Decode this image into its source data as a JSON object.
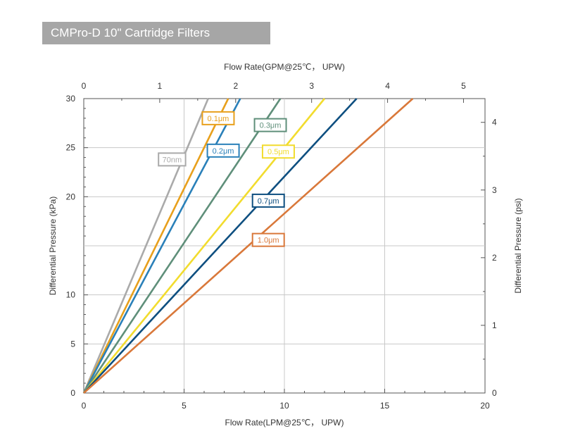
{
  "title": "CMPro-D 10\" Cartridge Filters",
  "chart_data": {
    "type": "line",
    "xlabel": "Flow Rate(LPM@25℃， UPW)",
    "x2label": "Flow Rate(GPM@25℃， UPW)",
    "ylabel": "Differential Pressure (kPa)",
    "y2label": "Differential Pressure (psi)",
    "xlim": [
      0,
      20
    ],
    "ylim": [
      0,
      30
    ],
    "x2lim": [
      0,
      5.283
    ],
    "y2lim": [
      0,
      4.351
    ],
    "x_ticks": [
      0,
      5,
      10,
      15,
      20
    ],
    "y_ticks": [
      0,
      5,
      10,
      20,
      25,
      30
    ],
    "y_grid": [
      5,
      10,
      15,
      20,
      25,
      30
    ],
    "x2_ticks": [
      0,
      1,
      2,
      3,
      4,
      5
    ],
    "y2_ticks": [
      0,
      1,
      2,
      3,
      4
    ],
    "grid": true,
    "series": [
      {
        "name": "70nm",
        "color": "#aaaaaa",
        "points": [
          [
            0,
            0
          ],
          [
            6.2,
            30
          ]
        ]
      },
      {
        "name": "0.1μm",
        "color": "#e8a01c",
        "points": [
          [
            0,
            0
          ],
          [
            7.2,
            30
          ]
        ]
      },
      {
        "name": "0.2μm",
        "color": "#2a80b9",
        "points": [
          [
            0,
            0
          ],
          [
            7.8,
            30
          ]
        ]
      },
      {
        "name": "0.3μm",
        "color": "#5f8f7a",
        "points": [
          [
            0,
            0
          ],
          [
            9.8,
            30
          ]
        ]
      },
      {
        "name": "0.5μm",
        "color": "#f2dc2e",
        "points": [
          [
            0,
            0
          ],
          [
            12.0,
            30
          ]
        ]
      },
      {
        "name": "0.7μm",
        "color": "#0e4f80",
        "points": [
          [
            0,
            0
          ],
          [
            13.6,
            30
          ]
        ]
      },
      {
        "name": "1.0μm",
        "color": "#d9783a",
        "points": [
          [
            0,
            0
          ],
          [
            16.4,
            30
          ]
        ]
      }
    ],
    "labels": [
      {
        "text": "70nm",
        "color": "#aaaaaa",
        "x": 4.4,
        "y": 23.8
      },
      {
        "text": "0.1μm",
        "color": "#e8a01c",
        "x": 6.7,
        "y": 28.0
      },
      {
        "text": "0.2μm",
        "color": "#2a80b9",
        "x": 6.95,
        "y": 24.7
      },
      {
        "text": "0.3μm",
        "color": "#5f8f7a",
        "x": 9.3,
        "y": 27.3
      },
      {
        "text": "0.5μm",
        "color": "#f2dc2e",
        "x": 9.7,
        "y": 24.6
      },
      {
        "text": "0.7μm",
        "color": "#0e4f80",
        "x": 9.2,
        "y": 19.6
      },
      {
        "text": "1.0μm",
        "color": "#d9783a",
        "x": 9.2,
        "y": 15.6
      }
    ]
  }
}
